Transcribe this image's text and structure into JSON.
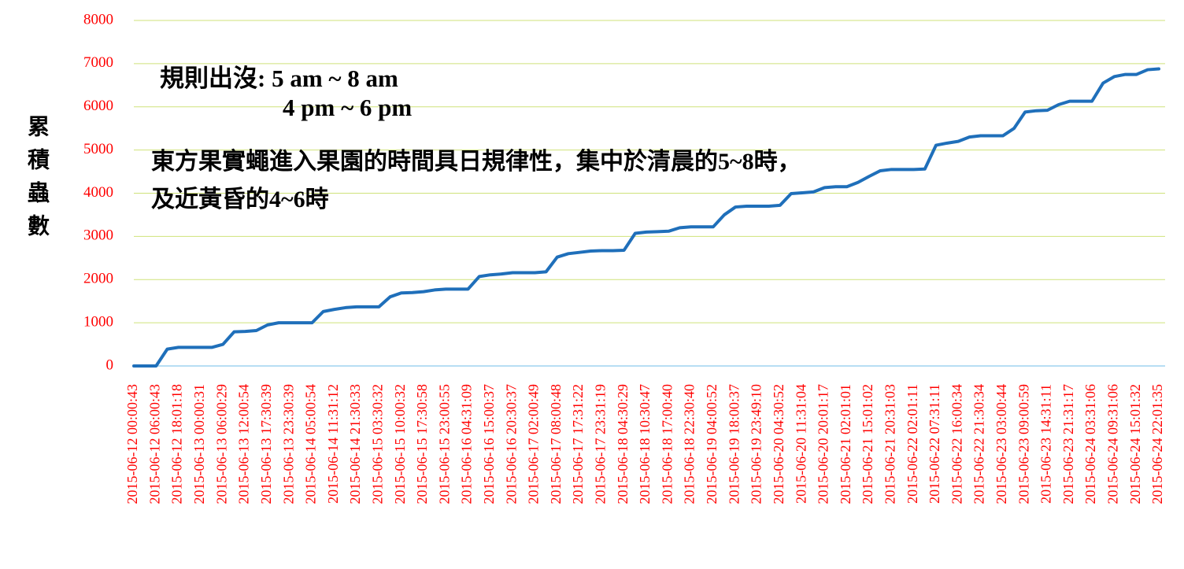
{
  "chart_data": {
    "type": "line",
    "y_label": "累積蟲數",
    "annotations": [
      "規則出沒: 5 am ~ 8 am",
      "4 pm ~ 6 pm",
      "東方果實蠅進入果園的時間具日規律性，集中於清晨的5~8時，",
      "及近黃昏的4~6時"
    ],
    "categories": [
      "2015-06-12 00:00:43",
      null,
      "2015-06-12 06:00:43",
      null,
      "2015-06-12 18:01:18",
      null,
      "2015-06-13 00:00:31",
      null,
      "2015-06-13 06:00:29",
      null,
      "2015-06-13 12:00:54",
      null,
      "2015-06-13 17:30:39",
      null,
      "2015-06-13 23:30:39",
      null,
      "2015-06-14 05:00:54",
      null,
      "2015-06-14 11:31:12",
      null,
      "2015-06-14 21:30:33",
      null,
      "2015-06-15 03:30:32",
      null,
      "2015-06-15 10:00:32",
      null,
      "2015-06-15 17:30:58",
      null,
      "2015-06-15 23:00:55",
      null,
      "2015-06-16 04:31:09",
      null,
      "2015-06-16 15:00:37",
      null,
      "2015-06-16 20:30:37",
      null,
      "2015-06-17 02:00:49",
      null,
      "2015-06-17 08:00:48",
      null,
      "2015-06-17 17:31:22",
      null,
      "2015-06-17 23:31:19",
      null,
      "2015-06-18 04:30:29",
      null,
      "2015-06-18 10:30:47",
      null,
      "2015-06-18 17:00:40",
      null,
      "2015-06-18 22:30:40",
      null,
      "2015-06-19 04:00:52",
      null,
      "2015-06-19 18:00:37",
      null,
      "2015-06-19 23:49:10",
      null,
      "2015-06-20 04:30:52",
      null,
      "2015-06-20 11:31:04",
      null,
      "2015-06-20 20:01:17",
      null,
      "2015-06-21 02:01:01",
      null,
      "2015-06-21 15:01:02",
      null,
      "2015-06-21 20:31:03",
      null,
      "2015-06-22 02:01:11",
      null,
      "2015-06-22 07:31:11",
      null,
      "2015-06-22 16:00:34",
      null,
      "2015-06-22 21:30:34",
      null,
      "2015-06-23 03:00:44",
      null,
      "2015-06-23 09:00:59",
      null,
      "2015-06-23 14:31:11",
      null,
      "2015-06-23 21:31:17",
      null,
      "2015-06-24 03:31:06",
      null,
      "2015-06-24 09:31:06",
      null,
      "2015-06-24 15:01:32",
      null,
      "2015-06-24 22:01:35"
    ],
    "values": [
      0,
      0,
      0,
      390,
      430,
      430,
      430,
      430,
      500,
      790,
      800,
      820,
      950,
      1000,
      1000,
      1000,
      1000,
      1260,
      1310,
      1350,
      1370,
      1370,
      1370,
      1600,
      1690,
      1700,
      1720,
      1760,
      1780,
      1780,
      1780,
      2070,
      2110,
      2130,
      2160,
      2160,
      2160,
      2180,
      2520,
      2600,
      2630,
      2660,
      2670,
      2670,
      2680,
      3070,
      3100,
      3110,
      3120,
      3200,
      3220,
      3220,
      3220,
      3500,
      3680,
      3700,
      3700,
      3700,
      3720,
      3990,
      4010,
      4030,
      4130,
      4150,
      4150,
      4250,
      4390,
      4520,
      4550,
      4550,
      4550,
      4560,
      5110,
      5160,
      5200,
      5300,
      5330,
      5330,
      5330,
      5500,
      5880,
      5910,
      5920,
      6050,
      6130,
      6130,
      6130,
      6550,
      6700,
      6750,
      6750,
      6860,
      6880
    ],
    "color": "#1f6fba",
    "ylim": [
      0,
      8000
    ],
    "yticks": [
      0,
      1000,
      2000,
      3000,
      4000,
      5000,
      6000,
      7000,
      8000
    ],
    "grid": true
  }
}
